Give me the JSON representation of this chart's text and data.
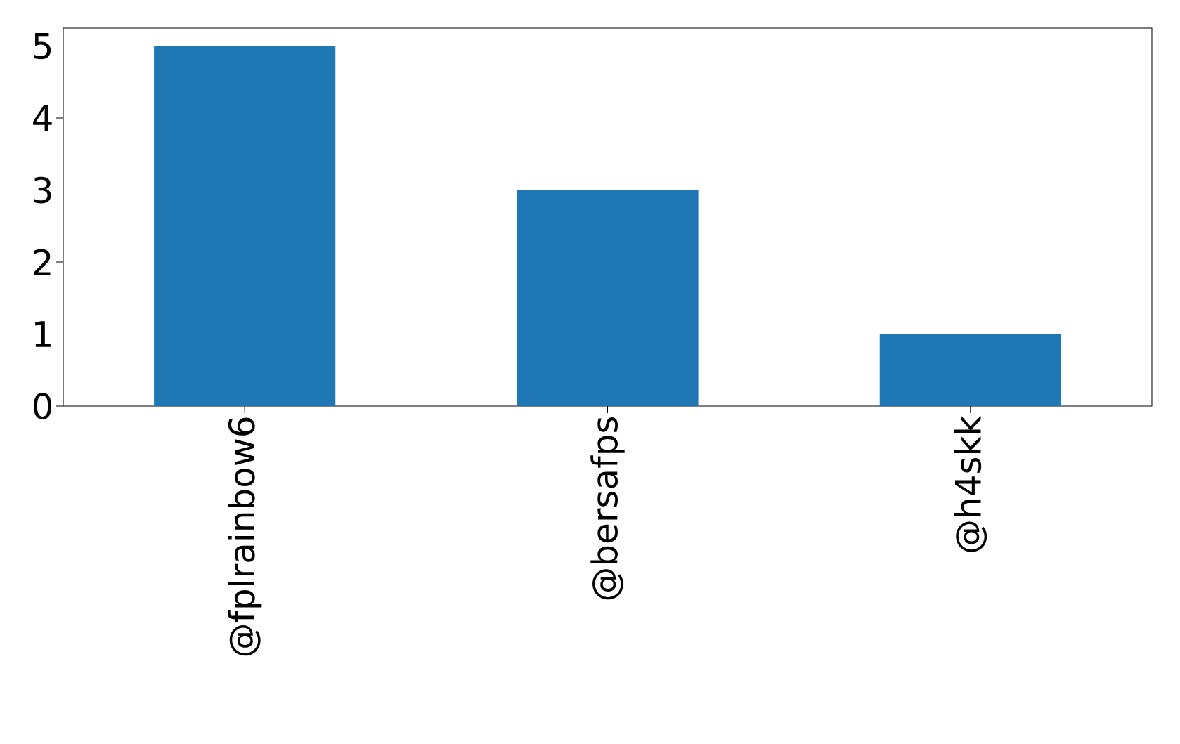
{
  "chart_data": {
    "type": "bar",
    "categories": [
      "@fplrainbow6",
      "@bersafps",
      "@h4skk"
    ],
    "values": [
      5,
      3,
      1
    ],
    "color": "#1f77b4",
    "ylim": [
      0,
      5.25
    ],
    "yticks": [
      0,
      1,
      2,
      3,
      4,
      5
    ],
    "grid": false
  }
}
